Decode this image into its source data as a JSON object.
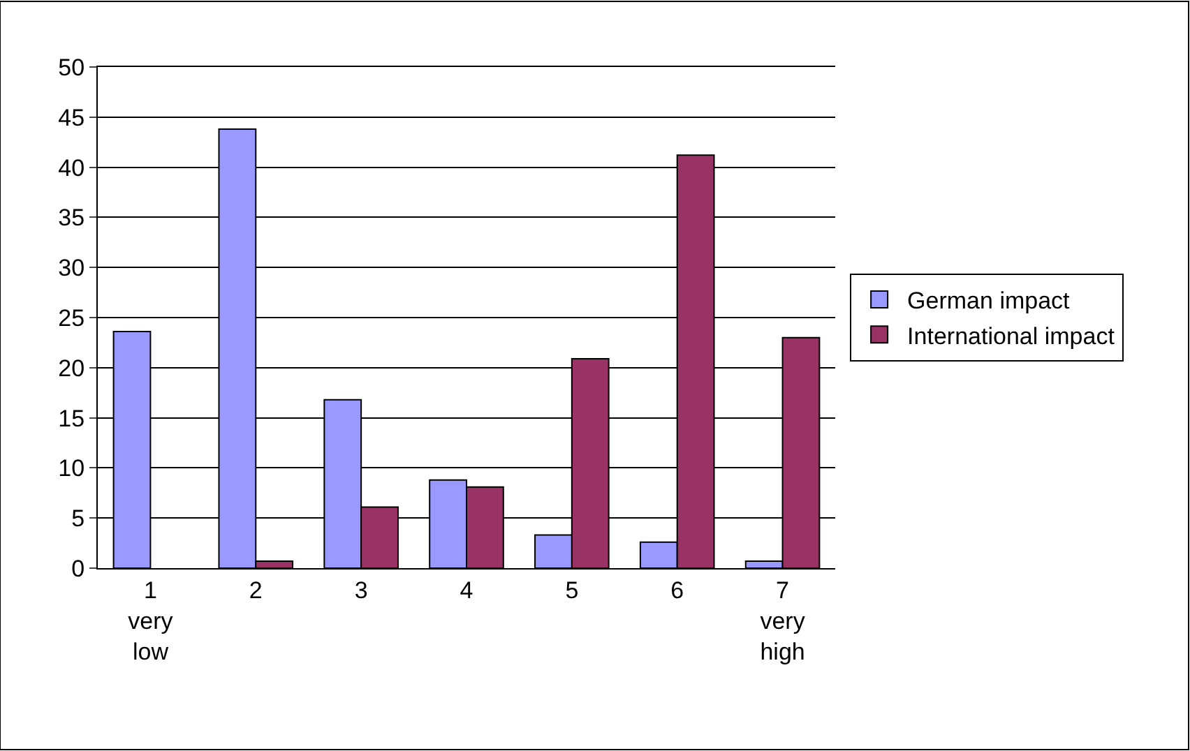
{
  "chart_data": {
    "type": "bar",
    "categories": [
      "1\nvery\nlow",
      "2",
      "3",
      "4",
      "5",
      "6",
      "7\nvery\nhigh"
    ],
    "series": [
      {
        "name": "German impact",
        "color": "#9999ff",
        "values": [
          23.6,
          43.8,
          16.8,
          8.8,
          3.3,
          2.6,
          0.7
        ]
      },
      {
        "name": "International impact",
        "color": "#993366",
        "values": [
          null,
          0.7,
          6.1,
          8.1,
          20.9,
          41.2,
          23.0
        ]
      }
    ],
    "ylim": [
      0,
      50
    ],
    "yticks": [
      0,
      5,
      10,
      15,
      20,
      25,
      30,
      35,
      40,
      45,
      50
    ],
    "grid": "y",
    "legend": "right"
  }
}
